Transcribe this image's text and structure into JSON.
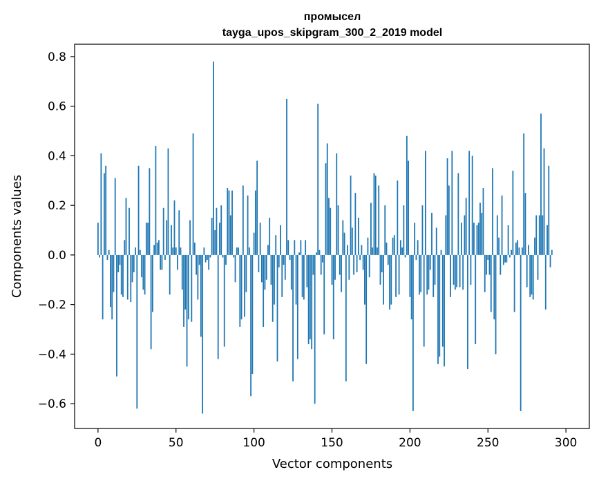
{
  "chart_data": {
    "type": "bar",
    "title": "промысел",
    "subtitle": "tayga_upos_skipgram_300_2_2019 model",
    "xlabel": "Vector components",
    "ylabel": "Components values",
    "xlim": [
      -15,
      315
    ],
    "ylim": [
      -0.7,
      0.85
    ],
    "xticks": [
      0,
      50,
      100,
      150,
      200,
      250,
      300
    ],
    "xtick_labels": [
      "0",
      "50",
      "100",
      "150",
      "200",
      "250",
      "300"
    ],
    "yticks": [
      -0.6,
      -0.4,
      -0.2,
      0.0,
      0.2,
      0.4,
      0.6,
      0.8
    ],
    "ytick_labels": [
      "−0.6",
      "−0.4",
      "−0.2",
      "0.0",
      "0.2",
      "0.4",
      "0.6",
      "0.8"
    ],
    "bar_color": "#1f77b4",
    "grid": false,
    "legend": "none",
    "values": [
      0.13,
      -0.01,
      0.41,
      -0.26,
      0.33,
      0.36,
      -0.02,
      0.02,
      -0.21,
      -0.26,
      -0.15,
      0.31,
      -0.49,
      -0.07,
      -0.04,
      -0.16,
      -0.17,
      0.06,
      0.23,
      -0.18,
      0.19,
      -0.19,
      -0.11,
      -0.07,
      0.03,
      -0.62,
      0.36,
      0.02,
      -0.09,
      -0.14,
      -0.16,
      0.13,
      0.13,
      0.35,
      -0.38,
      -0.23,
      0.04,
      0.44,
      0.05,
      0.06,
      -0.06,
      -0.06,
      0.19,
      -0.02,
      0.14,
      0.43,
      -0.16,
      0.12,
      0.03,
      0.22,
      0.03,
      -0.06,
      0.18,
      0.03,
      -0.14,
      -0.29,
      -0.22,
      -0.45,
      -0.26,
      0.14,
      -0.27,
      0.49,
      0.05,
      -0.08,
      -0.18,
      -0.04,
      -0.33,
      -0.64,
      0.03,
      -0.03,
      -0.02,
      -0.06,
      -0.01,
      0.15,
      0.78,
      0.1,
      0.19,
      -0.42,
      0.13,
      0.2,
      -0.01,
      -0.37,
      -0.04,
      0.27,
      0.26,
      0.16,
      0.26,
      -0.01,
      -0.11,
      0.03,
      0.03,
      -0.29,
      -0.26,
      0.28,
      -0.25,
      -0.15,
      0.24,
      0.03,
      -0.57,
      -0.48,
      0.09,
      0.26,
      0.38,
      -0.07,
      0.13,
      -0.11,
      -0.29,
      -0.14,
      -0.1,
      0.04,
      0.15,
      -0.12,
      -0.27,
      -0.2,
      0.08,
      -0.43,
      -0.05,
      0.12,
      -0.17,
      -0.04,
      -0.1,
      0.63,
      0.06,
      -0.02,
      -0.14,
      -0.51,
      0.06,
      -0.2,
      -0.42,
      0.01,
      0.06,
      -0.17,
      -0.18,
      0.06,
      -0.13,
      -0.36,
      -0.34,
      -0.38,
      -0.08,
      -0.6,
      0.01,
      0.61,
      0.02,
      -0.08,
      -0.03,
      -0.32,
      0.37,
      0.45,
      0.23,
      0.19,
      -0.12,
      -0.34,
      -0.1,
      0.41,
      0.2,
      -0.08,
      -0.15,
      0.14,
      0.09,
      -0.51,
      0.04,
      -0.1,
      0.32,
      0.11,
      -0.08,
      0.25,
      -0.07,
      0.15,
      -0.02,
      0.04,
      -0.06,
      -0.2,
      -0.44,
      0.07,
      -0.09,
      0.21,
      0.03,
      0.33,
      0.32,
      0.03,
      0.28,
      -0.12,
      -0.07,
      -0.2,
      0.2,
      0.05,
      -0.04,
      -0.22,
      -0.2,
      0.07,
      0.08,
      -0.17,
      0.3,
      -0.16,
      0.06,
      0.03,
      0.2,
      -0.01,
      0.48,
      0.38,
      -0.17,
      -0.26,
      -0.63,
      0.13,
      -0.02,
      0.06,
      -0.16,
      -0.15,
      0.2,
      -0.37,
      0.42,
      -0.16,
      -0.14,
      -0.06,
      0.17,
      -0.17,
      -0.12,
      0.11,
      -0.44,
      -0.41,
      0.02,
      -0.37,
      -0.45,
      0.16,
      0.39,
      0.28,
      -0.17,
      0.42,
      -0.12,
      -0.14,
      -0.13,
      0.33,
      -0.13,
      0.13,
      -0.14,
      0.16,
      0.23,
      -0.46,
      0.42,
      -0.12,
      0.4,
      0.13,
      -0.36,
      0.12,
      0.13,
      0.21,
      0.17,
      0.27,
      -0.15,
      -0.08,
      -0.02,
      -0.08,
      -0.23,
      0.35,
      -0.26,
      -0.4,
      0.16,
      0.07,
      -0.08,
      0.24,
      -0.04,
      -0.03,
      -0.03,
      0.12,
      -0.01,
      0.02,
      0.34,
      -0.23,
      0.05,
      0.06,
      0.03,
      -0.63,
      0.03,
      0.49,
      0.25,
      -0.13,
      0.04,
      -0.17,
      -0.16,
      -0.18,
      0.07,
      0.16,
      -0.1,
      0.16,
      0.57,
      0.16,
      0.43,
      -0.22,
      0.12,
      0.36,
      -0.05,
      0.02
    ]
  }
}
